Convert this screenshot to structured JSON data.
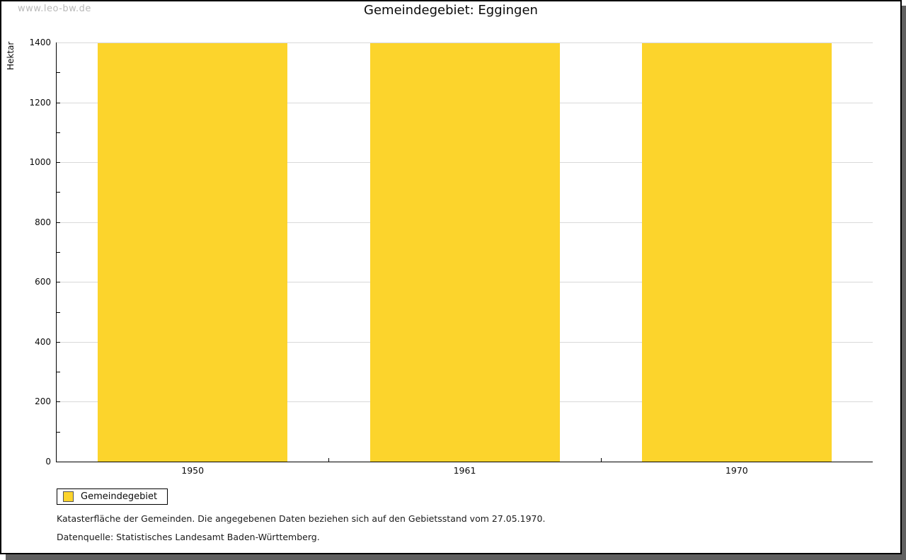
{
  "watermark": "www.leo-bw.de",
  "header": {
    "title": "Gemeindegebiet: Eggingen"
  },
  "legend": {
    "label": "Gemeindegebiet"
  },
  "footnotes": {
    "line1": "Katasterfläche der Gemeinden. Die angegebenen Daten beziehen sich auf den Gebietsstand vom 27.05.1970.",
    "line2": "Datenquelle: Statistisches Landesamt Baden-Württemberg."
  },
  "chart_data": {
    "type": "bar",
    "title": "Gemeindegebiet: Eggingen",
    "categories": [
      "1950",
      "1961",
      "1970"
    ],
    "series": [
      {
        "name": "Gemeindegebiet",
        "values": [
          1397,
          1397,
          1397
        ]
      }
    ],
    "xlabel": "",
    "ylabel": "Hektar",
    "ylim": [
      0,
      1400
    ],
    "ytick_step": 200,
    "yminor_tick_step": 100,
    "ytick_labels": [
      "0",
      "200",
      "400",
      "600",
      "800",
      "1000",
      "1200",
      "1400"
    ],
    "grid": "horizontal-major",
    "legend_position": "bottom-left",
    "colors": {
      "bar": "#fcd42c",
      "grid": "#d9d9d9",
      "axis": "#000000",
      "watermark": "#b9b9b9",
      "frame_shadow": "#606060",
      "background": "#ffffff"
    }
  }
}
